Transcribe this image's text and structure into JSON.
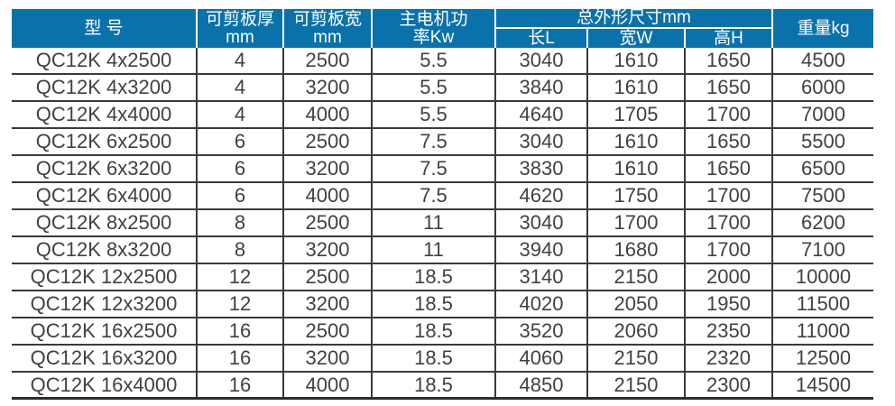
{
  "colors": {
    "header_bg": "#0a72ab",
    "header_text": "#ffffff",
    "grid_line": "#3a3a3a",
    "body_text": "#414141"
  },
  "table": {
    "headers": {
      "model": "型 号",
      "thickness": [
        "可剪板厚",
        "mm"
      ],
      "plate_width": [
        "可剪板宽",
        "mm"
      ],
      "motor_power": [
        "主电机功",
        "率Kw"
      ],
      "dimensions_group": "总外形尺寸mm",
      "length": "长L",
      "width": "宽W",
      "height": "高H",
      "weight": "重量kg"
    },
    "rows": [
      [
        "QC12K 4x2500",
        "4",
        "2500",
        "5.5",
        "3040",
        "1610",
        "1650",
        "4500"
      ],
      [
        "QC12K 4x3200",
        "4",
        "3200",
        "5.5",
        "3840",
        "1610",
        "1650",
        "6000"
      ],
      [
        "QC12K 4x4000",
        "4",
        "4000",
        "5.5",
        "4640",
        "1705",
        "1700",
        "7000"
      ],
      [
        "QC12K 6x2500",
        "6",
        "2500",
        "7.5",
        "3040",
        "1610",
        "1650",
        "5500"
      ],
      [
        "QC12K 6x3200",
        "6",
        "3200",
        "7.5",
        "3830",
        "1610",
        "1650",
        "6500"
      ],
      [
        "QC12K 6x4000",
        "6",
        "4000",
        "7.5",
        "4620",
        "1750",
        "1700",
        "7500"
      ],
      [
        "QC12K 8x2500",
        "8",
        "2500",
        "11",
        "3040",
        "1700",
        "1700",
        "6200"
      ],
      [
        "QC12K 8x3200",
        "8",
        "3200",
        "11",
        "3940",
        "1680",
        "1700",
        "7100"
      ],
      [
        "QC12K 12x2500",
        "12",
        "2500",
        "18.5",
        "3140",
        "2150",
        "2000",
        "10000"
      ],
      [
        "QC12K 12x3200",
        "12",
        "3200",
        "18.5",
        "4020",
        "2050",
        "1950",
        "11500"
      ],
      [
        "QC12K 16x2500",
        "16",
        "2500",
        "18.5",
        "3520",
        "2060",
        "2350",
        "11000"
      ],
      [
        "QC12K 16x3200",
        "16",
        "3200",
        "18.5",
        "4060",
        "2150",
        "2320",
        "12500"
      ],
      [
        "QC12K 16x4000",
        "16",
        "4000",
        "18.5",
        "4850",
        "2150",
        "2300",
        "14500"
      ]
    ]
  }
}
